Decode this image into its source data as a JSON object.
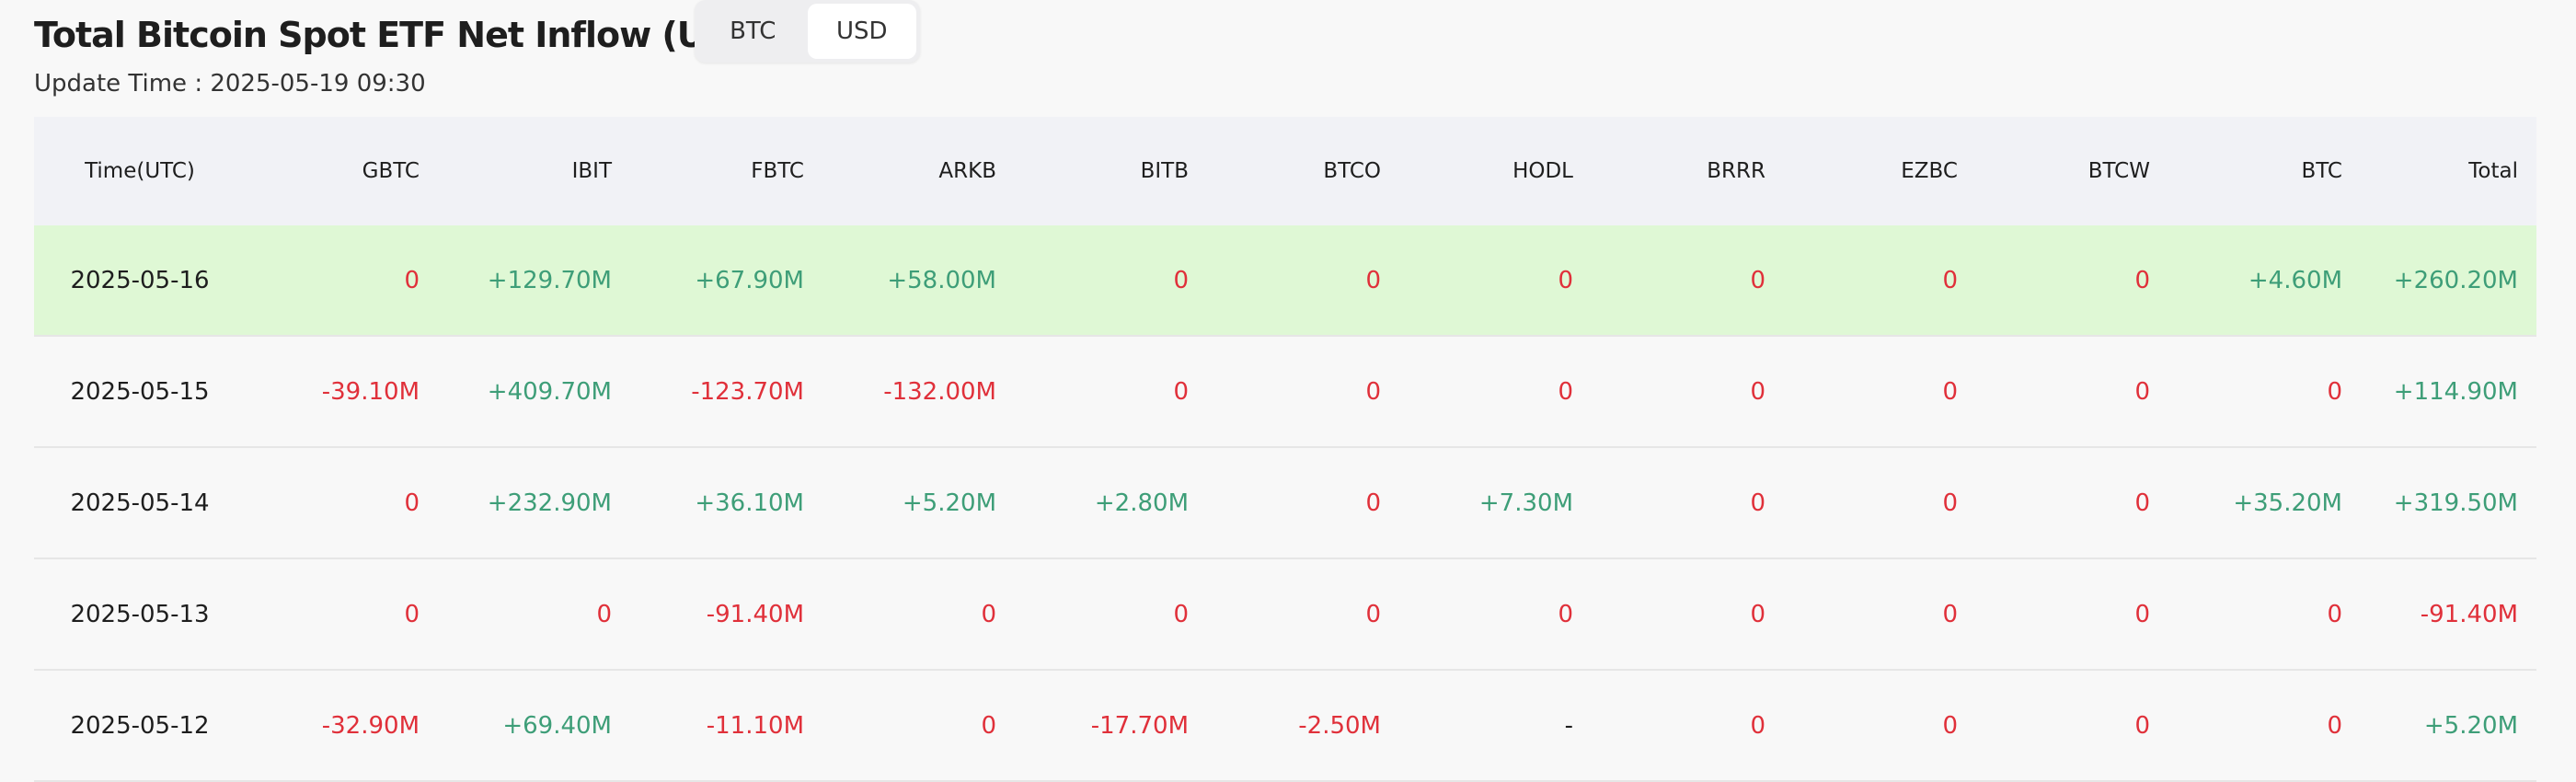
{
  "header": {
    "title": "Total Bitcoin Spot ETF Net Inflow (USD)",
    "toggle": [
      "BTC",
      "USD"
    ],
    "update_time": "Update Time : 2025-05-19 09:30"
  },
  "table": {
    "columns": [
      "Time(UTC)",
      "GBTC",
      "IBIT",
      "FBTC",
      "ARKB",
      "BITB",
      "BTCO",
      "HODL",
      "BRRR",
      "EZBC",
      "BTCW",
      "BTC",
      "Total"
    ],
    "rows": [
      [
        "2025-05-16",
        "0",
        "+129.70M",
        "+67.90M",
        "+58.00M",
        "0",
        "0",
        "0",
        "0",
        "0",
        "0",
        "+4.60M",
        "+260.20M"
      ],
      [
        "2025-05-15",
        "-39.10M",
        "+409.70M",
        "-123.70M",
        "-132.00M",
        "0",
        "0",
        "0",
        "0",
        "0",
        "0",
        "0",
        "+114.90M"
      ],
      [
        "2025-05-14",
        "0",
        "+232.90M",
        "+36.10M",
        "+5.20M",
        "+2.80M",
        "0",
        "+7.30M",
        "0",
        "0",
        "0",
        "+35.20M",
        "+319.50M"
      ],
      [
        "2025-05-13",
        "0",
        "0",
        "-91.40M",
        "0",
        "0",
        "0",
        "0",
        "0",
        "0",
        "0",
        "0",
        "-91.40M"
      ],
      [
        "2025-05-12",
        "-32.90M",
        "+69.40M",
        "-11.10M",
        "0",
        "-17.70M",
        "-2.50M",
        "-",
        "0",
        "0",
        "0",
        "0",
        "+5.20M"
      ]
    ]
  }
}
